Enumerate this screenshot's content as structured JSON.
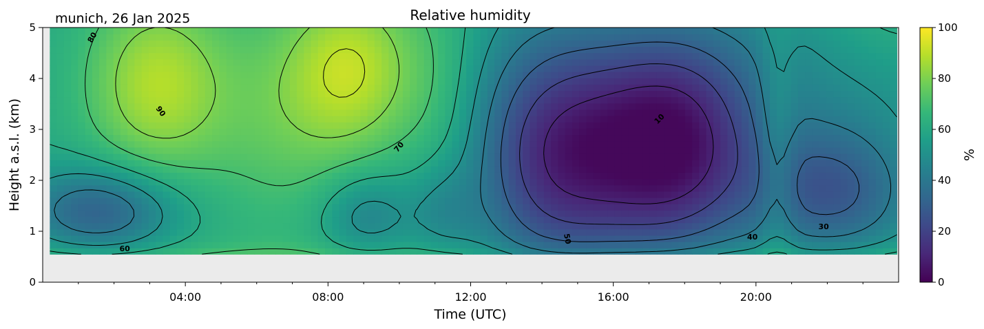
{
  "chart_data": {
    "type": "heatmap",
    "title": "Relative humidity",
    "location_label": "munich, 26 Jan 2025",
    "xlabel": "Time (UTC)",
    "ylabel": "Height a.s.l. (km)",
    "x_unit": "hours UTC",
    "xlim": [
      0,
      24
    ],
    "ylim": [
      0,
      5
    ],
    "x_ticks": [
      {
        "value": 4,
        "label": "04:00"
      },
      {
        "value": 8,
        "label": "08:00"
      },
      {
        "value": 12,
        "label": "12:00"
      },
      {
        "value": 16,
        "label": "16:00"
      },
      {
        "value": 20,
        "label": "20:00"
      }
    ],
    "y_ticks": [
      {
        "value": 0,
        "label": "0"
      },
      {
        "value": 1,
        "label": "1"
      },
      {
        "value": 2,
        "label": "2"
      },
      {
        "value": 3,
        "label": "3"
      },
      {
        "value": 4,
        "label": "4"
      },
      {
        "value": 5,
        "label": "5"
      }
    ],
    "colorbar": {
      "label": "%",
      "range": [
        0,
        100
      ],
      "colormap": "viridis",
      "ticks": [
        {
          "value": 0,
          "label": "0"
        },
        {
          "value": 20,
          "label": "20"
        },
        {
          "value": 40,
          "label": "40"
        },
        {
          "value": 60,
          "label": "60"
        },
        {
          "value": 80,
          "label": "80"
        },
        {
          "value": 100,
          "label": "100"
        }
      ]
    },
    "data_lower_height_km": 0.55,
    "data_time_range": [
      0.2,
      23.95
    ],
    "no_data_color": "#ebebeb",
    "grid": false,
    "contour_levels": [
      10,
      20,
      30,
      40,
      50,
      60,
      70,
      80,
      90
    ],
    "contour_labels": [
      {
        "text": "80",
        "x": 1.4,
        "y": 4.8,
        "rotation": -60
      },
      {
        "text": "90",
        "x": 3.3,
        "y": 3.35,
        "rotation": 55
      },
      {
        "text": "70",
        "x": 10.0,
        "y": 2.65,
        "rotation": -50
      },
      {
        "text": "60",
        "x": 2.3,
        "y": 0.65,
        "rotation": 0
      },
      {
        "text": "50",
        "x": 14.7,
        "y": 0.85,
        "rotation": 80
      },
      {
        "text": "40",
        "x": 19.9,
        "y": 0.88,
        "rotation": 0
      },
      {
        "text": "30",
        "x": 21.9,
        "y": 1.08,
        "rotation": 0
      },
      {
        "text": "10",
        "x": 17.3,
        "y": 3.2,
        "rotation": -45
      }
    ],
    "colors": {
      "viridis": [
        "#440154",
        "#482878",
        "#3e4989",
        "#31688e",
        "#26828e",
        "#1f9e89",
        "#35b779",
        "#6ece58",
        "#b5de2b",
        "#fde725"
      ],
      "contour_line": "#000000"
    }
  }
}
